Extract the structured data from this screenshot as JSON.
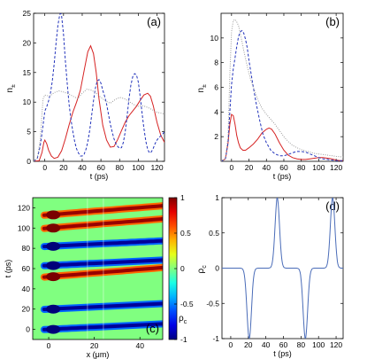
{
  "chart_data": [
    {
      "type": "line",
      "panel_label": "(a)",
      "xlabel": "t (ps)",
      "ylabel_main": "n",
      "ylabel_sub": "±",
      "xlim": [
        -12,
        128
      ],
      "ylim": [
        0,
        25
      ],
      "xticks": [
        0,
        20,
        40,
        60,
        80,
        100,
        120
      ],
      "yticks": [
        0,
        5,
        10,
        15,
        20,
        25
      ],
      "series": [
        {
          "color": "#d62222",
          "style": "solid",
          "x": [
            -12,
            -6,
            -3,
            -1,
            0,
            2,
            4,
            7,
            10,
            14,
            18,
            22,
            26,
            30,
            34,
            38,
            42,
            46,
            49,
            52,
            55,
            58,
            62,
            66,
            70,
            74,
            78,
            82,
            86,
            90,
            94,
            98,
            102,
            106,
            110,
            113,
            116,
            120,
            124,
            128
          ],
          "y": [
            0,
            0.1,
            1.5,
            3.2,
            3.6,
            3.0,
            1.9,
            0.9,
            0.5,
            0.7,
            1.8,
            3.8,
            6.2,
            8.3,
            10.0,
            12.0,
            15.3,
            18.5,
            19.5,
            18.2,
            15.0,
            10.5,
            6.1,
            3.6,
            2.4,
            2.5,
            3.7,
            5.2,
            6.6,
            7.7,
            8.5,
            9.3,
            10.3,
            11.2,
            11.5,
            11.0,
            9.4,
            6.6,
            4.4,
            3.2
          ]
        },
        {
          "color": "#2233bb",
          "style": "dashed",
          "x": [
            -12,
            -8,
            -5,
            -2,
            0,
            2,
            4,
            6,
            8,
            10,
            12,
            14,
            16,
            17,
            18,
            20,
            22,
            24,
            26,
            28,
            30,
            32,
            34,
            36,
            38,
            40,
            42,
            44,
            46,
            48,
            50,
            52,
            54,
            56,
            58,
            60,
            62,
            64,
            66,
            68,
            70,
            72,
            74,
            76,
            78,
            80,
            82,
            84,
            86,
            88,
            90,
            92,
            94,
            96,
            98,
            100,
            102,
            104,
            106,
            108,
            110,
            112,
            114,
            116,
            118,
            120,
            122,
            124,
            126,
            128
          ],
          "y": [
            0,
            0.5,
            2.5,
            6.0,
            8.5,
            9.2,
            10.2,
            11.5,
            13.5,
            16.5,
            20.0,
            23.0,
            24.8,
            25.0,
            24.5,
            21.5,
            17.0,
            13.0,
            9.5,
            7.0,
            5.0,
            3.3,
            2.1,
            1.4,
            0.9,
            0.9,
            1.2,
            2.0,
            3.3,
            5.2,
            7.6,
            10.2,
            12.3,
            13.6,
            13.8,
            13.2,
            12.0,
            11.0,
            9.7,
            8.0,
            6.3,
            5.0,
            3.8,
            3.0,
            2.5,
            2.2,
            2.3,
            3.2,
            5.0,
            7.6,
            10.5,
            12.8,
            14.3,
            14.8,
            14.6,
            13.4,
            11.0,
            8.2,
            5.6,
            3.4,
            2.0,
            1.4,
            1.6,
            2.2,
            3.0,
            3.6,
            4.0,
            4.3,
            4.6,
            5.0
          ]
        },
        {
          "color": "#9a9a9a",
          "style": "dotted",
          "x": [
            -12,
            -8,
            -5,
            -2,
            0,
            5,
            10,
            15,
            20,
            25,
            30,
            35,
            40,
            45,
            50,
            55,
            60,
            65,
            70,
            75,
            80,
            85,
            90,
            95,
            100,
            105,
            110,
            115,
            120,
            125,
            128
          ],
          "y": [
            0,
            0.6,
            3.5,
            10.5,
            11.2,
            11.0,
            11.6,
            11.9,
            11.7,
            11.4,
            11.0,
            10.6,
            11.5,
            12.2,
            12.0,
            11.5,
            10.8,
            10.2,
            9.8,
            10.4,
            10.8,
            10.6,
            10.1,
            9.6,
            9.3,
            9.4,
            9.1,
            8.7,
            8.3,
            8.1,
            8.0
          ]
        }
      ]
    },
    {
      "type": "line",
      "panel_label": "(b)",
      "xlabel": "t (ps)",
      "ylabel_main": "n",
      "ylabel_sub": "±",
      "xlim": [
        -12,
        128
      ],
      "ylim": [
        0,
        12
      ],
      "xticks": [
        0,
        20,
        40,
        60,
        80,
        100,
        120
      ],
      "yticks": [
        2,
        4,
        6,
        8,
        10
      ],
      "series": [
        {
          "color": "#d62222",
          "style": "solid",
          "x": [
            -12,
            -7,
            -4,
            -2,
            0,
            2,
            4,
            6,
            8,
            10,
            13,
            16,
            20,
            25,
            30,
            35,
            40,
            43,
            46,
            50,
            55,
            60,
            65,
            70,
            75,
            80,
            85,
            90,
            95,
            100,
            105,
            110,
            115,
            120,
            125,
            128
          ],
          "y": [
            0,
            0.2,
            1.5,
            3.0,
            3.8,
            3.7,
            3.0,
            2.1,
            1.5,
            1.1,
            0.9,
            0.9,
            1.1,
            1.4,
            1.8,
            2.3,
            2.6,
            2.7,
            2.6,
            2.2,
            1.5,
            0.9,
            0.5,
            0.3,
            0.2,
            0.15,
            0.15,
            0.2,
            0.25,
            0.3,
            0.3,
            0.25,
            0.2,
            0.1,
            0.05,
            0.05
          ]
        },
        {
          "color": "#2233bb",
          "style": "dashed",
          "x": [
            -12,
            -7,
            -4,
            -2,
            0,
            2,
            4,
            6,
            8,
            10,
            12,
            14,
            16,
            18,
            20,
            24,
            28,
            32,
            36,
            40,
            45,
            50,
            55,
            60,
            65,
            70,
            75,
            80,
            85,
            90,
            95,
            100,
            105,
            110,
            115,
            120,
            125,
            128
          ],
          "y": [
            0,
            0.2,
            1.5,
            4.0,
            6.2,
            7.5,
            8.4,
            9.3,
            10.1,
            10.5,
            10.6,
            10.4,
            9.9,
            9.2,
            8.2,
            6.4,
            4.8,
            3.4,
            2.2,
            1.5,
            0.9,
            0.6,
            0.45,
            0.45,
            0.55,
            0.7,
            0.8,
            0.8,
            0.75,
            0.6,
            0.45,
            0.3,
            0.2,
            0.15,
            0.1,
            0.05,
            0.05,
            0.05
          ]
        },
        {
          "color": "#9a9a9a",
          "style": "dotted",
          "x": [
            -12,
            -7,
            -4,
            -2,
            0,
            2,
            4,
            6,
            8,
            10,
            14,
            18,
            22,
            26,
            30,
            35,
            40,
            45,
            50,
            55,
            60,
            65,
            70,
            75,
            80,
            85,
            90,
            95,
            100,
            110,
            120,
            128
          ],
          "y": [
            0,
            0.2,
            2.0,
            7.0,
            10.5,
            11.4,
            11.5,
            11.3,
            11.0,
            10.4,
            9.0,
            7.7,
            6.6,
            5.8,
            5.0,
            4.3,
            3.8,
            3.4,
            3.0,
            2.5,
            2.0,
            1.6,
            1.3,
            1.1,
            0.95,
            0.85,
            0.75,
            0.65,
            0.6,
            0.5,
            0.4,
            0.35
          ]
        }
      ]
    },
    {
      "type": "heatmap",
      "panel_label": "(c)",
      "xlabel": "x (μm)",
      "ylabel": "t (ps)",
      "colorbar_label_main": "ρ",
      "colorbar_label_sub": "c",
      "xlim": [
        -7,
        50
      ],
      "ylim": [
        -10,
        130
      ],
      "xticks": [
        0,
        20,
        40
      ],
      "yticks": [
        0,
        20,
        40,
        60,
        80,
        100,
        120
      ],
      "colorbar_range": [
        -1,
        1
      ],
      "colorbar_ticks": [
        "1",
        "0.5",
        "0",
        "-0.5",
        "-1"
      ],
      "colormap": "jet",
      "stripes": [
        {
          "t_center": 0,
          "sign": -1
        },
        {
          "t_center": 20,
          "sign": -1
        },
        {
          "t_center": 52,
          "sign": 1
        },
        {
          "t_center": 63,
          "sign": -1
        },
        {
          "t_center": 82,
          "sign": -1
        },
        {
          "t_center": 100,
          "sign": 1
        },
        {
          "t_center": 113,
          "sign": 1
        }
      ]
    },
    {
      "type": "line",
      "panel_label": "(d)",
      "xlabel": "t (ps)",
      "ylabel_main": "ρ",
      "ylabel_sub": "c",
      "xlim": [
        -10,
        128
      ],
      "ylim": [
        -1,
        1
      ],
      "xticks": [
        0,
        20,
        40,
        60,
        80,
        100,
        120
      ],
      "yticks": [
        -1,
        -0.5,
        0,
        0.5,
        1
      ],
      "series": [
        {
          "color": "#4a6cb8",
          "style": "solid",
          "pulses": [
            {
              "center": 21,
              "amp": -1,
              "width": 3.6
            },
            {
              "center": 53,
              "amp": 1,
              "width": 3.6
            },
            {
              "center": 85,
              "amp": -1,
              "width": 3.6
            },
            {
              "center": 116,
              "amp": 1,
              "width": 3.6
            }
          ]
        }
      ]
    }
  ]
}
